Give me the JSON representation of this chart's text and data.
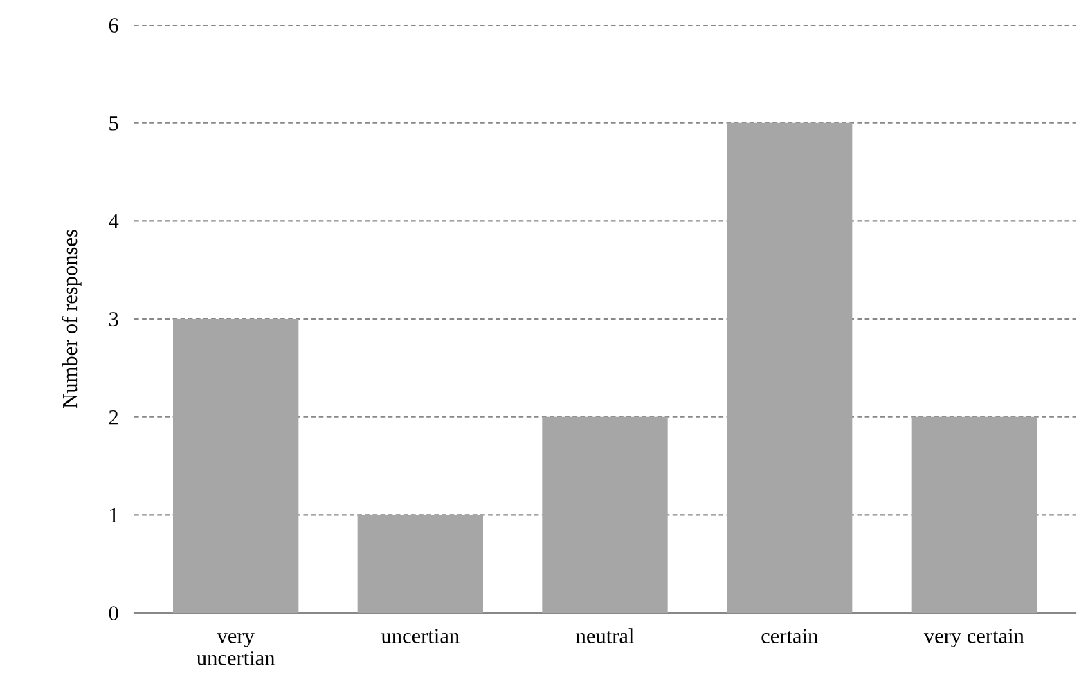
{
  "chart_data": {
    "type": "bar",
    "ylabel": "Number of responses",
    "categories": [
      "very\nuncertian",
      "uncertian",
      "neutral",
      "certain",
      "very certain"
    ],
    "values": [
      3,
      1,
      2,
      5,
      2
    ],
    "color": "#a6a6a6",
    "ylim": [
      0,
      6
    ],
    "yticks": [
      0,
      1,
      2,
      3,
      4,
      5,
      6
    ],
    "grid": "y",
    "line_style": "dashed"
  }
}
